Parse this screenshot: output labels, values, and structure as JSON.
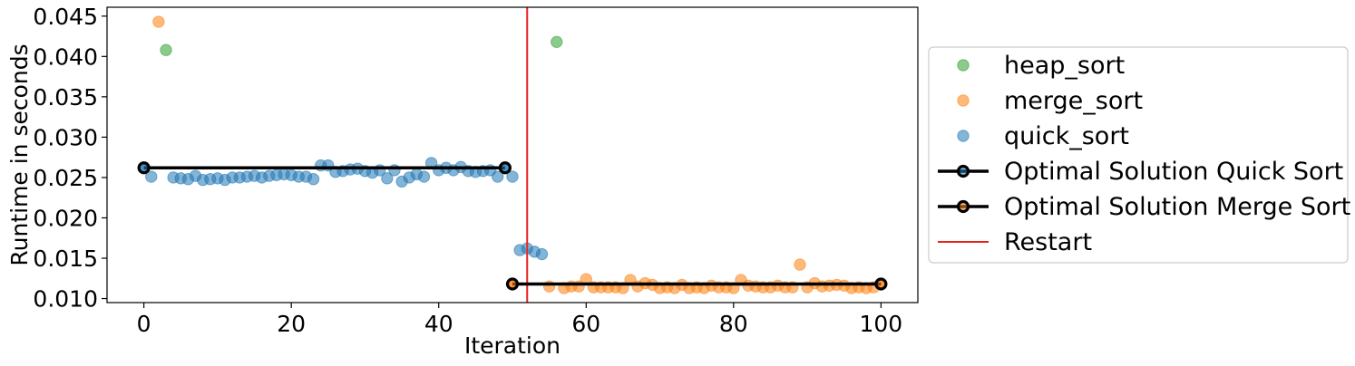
{
  "chart_data": {
    "type": "scatter",
    "title": "",
    "xlabel": "Iteration",
    "ylabel": "Runtime in seconds",
    "xlim": [
      -5,
      105
    ],
    "ylim": [
      0.0095,
      0.0461
    ],
    "x_ticks": [
      0,
      20,
      40,
      60,
      80,
      100
    ],
    "y_ticks": [
      0.01,
      0.015,
      0.02,
      0.025,
      0.03,
      0.035,
      0.04,
      0.045
    ],
    "x_tick_labels": [
      "0",
      "20",
      "40",
      "60",
      "80",
      "100"
    ],
    "y_tick_labels": [
      "0.010",
      "0.015",
      "0.020",
      "0.025",
      "0.030",
      "0.035",
      "0.040",
      "0.045"
    ],
    "grid": false,
    "legend_position": "outside-right",
    "series": [
      {
        "name": "heap_sort",
        "kind": "scatter",
        "color": "#2ca02c",
        "points": [
          [
            3,
            0.0408
          ],
          [
            56,
            0.0418
          ]
        ]
      },
      {
        "name": "merge_sort",
        "kind": "scatter",
        "color": "#ff7f0e",
        "points": [
          [
            2,
            0.0443
          ],
          [
            50,
            0.0118
          ],
          [
            55,
            0.0115
          ],
          [
            57,
            0.0113
          ],
          [
            58,
            0.0115
          ],
          [
            59,
            0.0115
          ],
          [
            60,
            0.0124
          ],
          [
            61,
            0.0114
          ],
          [
            62,
            0.0114
          ],
          [
            63,
            0.0114
          ],
          [
            64,
            0.0114
          ],
          [
            65,
            0.0113
          ],
          [
            66,
            0.0123
          ],
          [
            67,
            0.0115
          ],
          [
            68,
            0.0119
          ],
          [
            69,
            0.0117
          ],
          [
            70,
            0.0113
          ],
          [
            71,
            0.0114
          ],
          [
            72,
            0.0113
          ],
          [
            73,
            0.0117
          ],
          [
            74,
            0.0113
          ],
          [
            75,
            0.0114
          ],
          [
            76,
            0.0113
          ],
          [
            77,
            0.0116
          ],
          [
            78,
            0.0114
          ],
          [
            79,
            0.0114
          ],
          [
            80,
            0.0113
          ],
          [
            81,
            0.0123
          ],
          [
            82,
            0.0116
          ],
          [
            83,
            0.0115
          ],
          [
            84,
            0.0114
          ],
          [
            85,
            0.0114
          ],
          [
            86,
            0.0116
          ],
          [
            87,
            0.0114
          ],
          [
            88,
            0.0114
          ],
          [
            89,
            0.0142
          ],
          [
            90,
            0.0114
          ],
          [
            91,
            0.0119
          ],
          [
            92,
            0.0115
          ],
          [
            93,
            0.0116
          ],
          [
            94,
            0.0117
          ],
          [
            95,
            0.0116
          ],
          [
            96,
            0.0113
          ],
          [
            97,
            0.0114
          ],
          [
            98,
            0.0113
          ],
          [
            99,
            0.0114
          ],
          [
            100,
            0.0118
          ]
        ]
      },
      {
        "name": "quick_sort",
        "kind": "scatter",
        "color": "#1f77b4",
        "points": [
          [
            0,
            0.0262
          ],
          [
            1,
            0.0251
          ],
          [
            4,
            0.025
          ],
          [
            5,
            0.0249
          ],
          [
            6,
            0.0248
          ],
          [
            7,
            0.0252
          ],
          [
            8,
            0.0247
          ],
          [
            9,
            0.0248
          ],
          [
            10,
            0.0249
          ],
          [
            11,
            0.0247
          ],
          [
            12,
            0.025
          ],
          [
            13,
            0.025
          ],
          [
            14,
            0.0251
          ],
          [
            15,
            0.0252
          ],
          [
            16,
            0.025
          ],
          [
            17,
            0.0252
          ],
          [
            18,
            0.0253
          ],
          [
            19,
            0.0254
          ],
          [
            20,
            0.0253
          ],
          [
            21,
            0.0251
          ],
          [
            22,
            0.0251
          ],
          [
            23,
            0.0248
          ],
          [
            24,
            0.0265
          ],
          [
            25,
            0.0265
          ],
          [
            26,
            0.0257
          ],
          [
            27,
            0.0258
          ],
          [
            28,
            0.026
          ],
          [
            29,
            0.0261
          ],
          [
            30,
            0.0258
          ],
          [
            31,
            0.0256
          ],
          [
            32,
            0.0259
          ],
          [
            33,
            0.0249
          ],
          [
            34,
            0.0259
          ],
          [
            35,
            0.0245
          ],
          [
            36,
            0.025
          ],
          [
            37,
            0.0254
          ],
          [
            38,
            0.0251
          ],
          [
            39,
            0.0268
          ],
          [
            40,
            0.0259
          ],
          [
            41,
            0.0262
          ],
          [
            42,
            0.0259
          ],
          [
            43,
            0.0263
          ],
          [
            44,
            0.0258
          ],
          [
            45,
            0.0257
          ],
          [
            46,
            0.0258
          ],
          [
            47,
            0.0259
          ],
          [
            48,
            0.0251
          ],
          [
            49,
            0.0262
          ],
          [
            50,
            0.0251
          ],
          [
            51,
            0.016
          ],
          [
            52,
            0.0162
          ],
          [
            53,
            0.0158
          ],
          [
            54,
            0.0155
          ]
        ]
      },
      {
        "name": "Optimal Solution Quick Sort",
        "kind": "line",
        "color": "#000000",
        "marker_face": "#1f77b4",
        "points": [
          [
            0,
            0.0262
          ],
          [
            49,
            0.0262
          ]
        ]
      },
      {
        "name": "Optimal Solution Merge Sort",
        "kind": "line",
        "color": "#000000",
        "marker_face": "#ff7f0e",
        "points": [
          [
            50,
            0.0118
          ],
          [
            100,
            0.0118
          ]
        ]
      },
      {
        "name": "Restart",
        "kind": "vline",
        "color": "#e8231f",
        "x": 52
      }
    ]
  }
}
